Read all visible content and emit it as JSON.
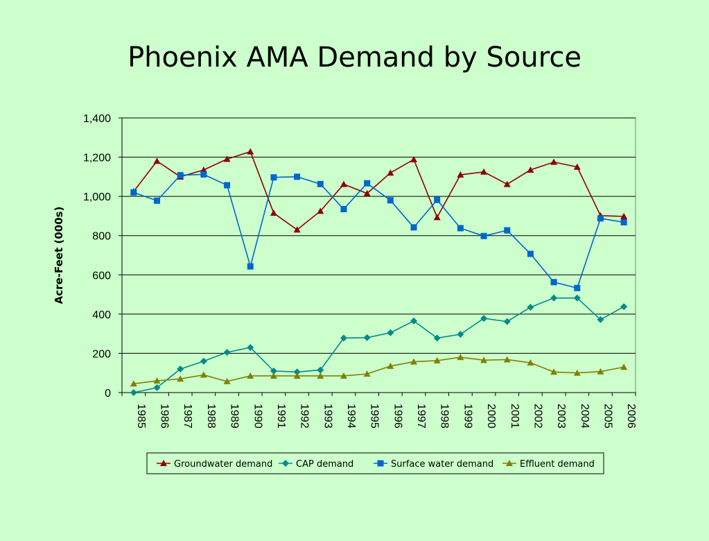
{
  "chart_data": {
    "type": "line",
    "title": "Phoenix AMA Demand by Source",
    "xlabel": "",
    "ylabel": "Acre-Feet (000s)",
    "ylim": [
      0,
      1400
    ],
    "yticks": [
      "0",
      "200",
      "400",
      "600",
      "800",
      "1,000",
      "1,200",
      "1,400"
    ],
    "ytick_values": [
      0,
      200,
      400,
      600,
      800,
      1000,
      1200,
      1400
    ],
    "grid": true,
    "legend": "bottom",
    "categories": [
      "1985",
      "1986",
      "1987",
      "1988",
      "1989",
      "1990",
      "1991",
      "1992",
      "1993",
      "1994",
      "1995",
      "1996",
      "1997",
      "1998",
      "1999",
      "2000",
      "2001",
      "2002",
      "2003",
      "2004",
      "2005",
      "2006"
    ],
    "series": [
      {
        "name": "Groundwater demand",
        "color": "#8b0000",
        "marker": "triangle",
        "values": [
          1025,
          1180,
          1100,
          1135,
          1190,
          1228,
          915,
          830,
          925,
          1062,
          1015,
          1120,
          1188,
          893,
          1110,
          1125,
          1062,
          1135,
          1175,
          1150,
          902,
          898
        ]
      },
      {
        "name": "CAP demand",
        "color": "#008b8b",
        "marker": "diamond",
        "values": [
          0,
          25,
          120,
          160,
          205,
          230,
          110,
          105,
          115,
          278,
          280,
          305,
          365,
          278,
          297,
          378,
          362,
          435,
          482,
          482,
          372,
          438
        ]
      },
      {
        "name": "Surface water demand",
        "color": "#0066cc",
        "marker": "square",
        "values": [
          1020,
          978,
          1108,
          1112,
          1057,
          643,
          1097,
          1100,
          1063,
          935,
          1067,
          980,
          842,
          982,
          838,
          798,
          827,
          707,
          563,
          533,
          888,
          868
        ]
      },
      {
        "name": "Effluent demand",
        "color": "#808000",
        "marker": "triangle",
        "values": [
          45,
          60,
          70,
          90,
          57,
          85,
          85,
          85,
          85,
          85,
          95,
          135,
          157,
          163,
          180,
          165,
          168,
          152,
          105,
          100,
          107,
          130
        ]
      }
    ]
  }
}
